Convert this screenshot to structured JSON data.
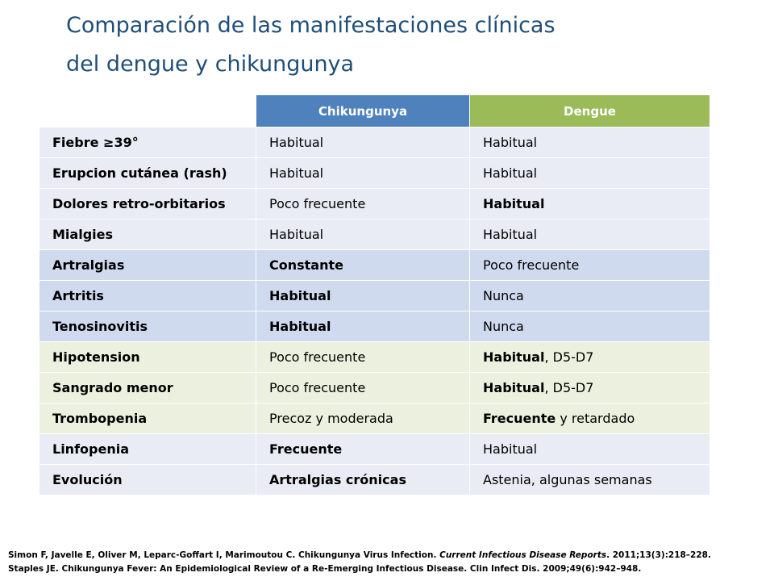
{
  "title": {
    "line1": "Comparación de las manifestaciones clínicas",
    "line2": "del dengue y chikungunya"
  },
  "table": {
    "headers": [
      "",
      "Chikungunya",
      "Dengue"
    ],
    "rows": [
      {
        "label": "Fiebre ≥39°",
        "chik": "Habitual",
        "dengue": "Habitual",
        "dengue_suffix": ""
      },
      {
        "label": "Erupcion cutánea (rash)",
        "chik": "Habitual",
        "dengue": "Habitual",
        "dengue_suffix": ""
      },
      {
        "label": "Dolores retro-orbitarios",
        "chik": "Poco frecuente",
        "dengue": "Habitual",
        "dengue_suffix": ""
      },
      {
        "label": "Mialgies",
        "chik": "Habitual",
        "dengue": "Habitual",
        "dengue_suffix": ""
      },
      {
        "label": "Artralgias",
        "chik": "Constante",
        "dengue": "Poco frecuente",
        "dengue_suffix": ""
      },
      {
        "label": "Artritis",
        "chik": "Habitual",
        "dengue": "Nunca",
        "dengue_suffix": ""
      },
      {
        "label": "Tenosinovitis",
        "chik": "Habitual",
        "dengue": "Nunca",
        "dengue_suffix": ""
      },
      {
        "label": "Hipotension",
        "chik": "Poco frecuente",
        "dengue": "Habitual",
        "dengue_suffix": ", D5-D7"
      },
      {
        "label": "Sangrado menor",
        "chik": "Poco frecuente",
        "dengue": "Habitual",
        "dengue_suffix": ", D5-D7"
      },
      {
        "label": "Trombopenia",
        "chik": "Precoz y moderada",
        "dengue": "Frecuente",
        "dengue_suffix": " y retardado"
      },
      {
        "label": "Linfopenia",
        "chik": "Frecuente",
        "dengue": "Habitual",
        "dengue_suffix": ""
      },
      {
        "label": "Evolución",
        "chik": "Artralgias crónicas",
        "dengue": "Astenia, algunas semanas",
        "dengue_suffix": ""
      }
    ]
  },
  "colors": {
    "title": "#1f4e79",
    "header_chikungunya": "#4f81bd",
    "header_dengue": "#9bbb59",
    "row_gray": "#e9ebf5",
    "row_blue": "#cfdaee",
    "row_green": "#ebf1de"
  },
  "references": {
    "ref1_main": "Simon F, Javelle E, Oliver M, Leparc-Goffart I, Marimoutou C. Chikungunya Virus Infection. ",
    "ref1_journal": "Current Infectious Disease Reports",
    "ref1_tail": ". 2011;13(3):218–228.",
    "ref2": "Staples JE. Chikungunya Fever: An Epidemiological Review of a Re-Emerging Infectious Disease. Clin Infect Dis. 2009;49(6):942–948."
  }
}
